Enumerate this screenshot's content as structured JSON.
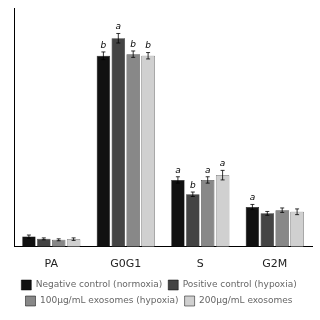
{
  "chart_data": {
    "type": "bar",
    "categories": [
      "PA",
      "G0G1",
      "S",
      "G2M"
    ],
    "series": [
      {
        "name": "Negative control (normoxia)",
        "color": "#111111",
        "values": [
          3.2,
          60.0,
          21.0,
          12.5
        ],
        "errors": [
          0.5,
          1.2,
          1.0,
          0.8
        ],
        "letters": [
          null,
          "b",
          "a",
          "a"
        ]
      },
      {
        "name": "Positive control (hypoxia)",
        "color": "#444444",
        "values": [
          2.5,
          65.5,
          16.5,
          10.5
        ],
        "errors": [
          0.3,
          1.5,
          0.7,
          0.6
        ],
        "letters": [
          null,
          "a",
          "b",
          null
        ]
      },
      {
        "name": "100µg/mL exosomes (hypoxia)",
        "color": "#888888",
        "values": [
          2.2,
          60.5,
          21.0,
          11.5
        ],
        "errors": [
          0.3,
          1.0,
          1.0,
          0.7
        ],
        "letters": [
          null,
          "b",
          "a",
          null
        ]
      },
      {
        "name": "200µg/mL exosomes",
        "color": "#d0d0d0",
        "values": [
          2.4,
          60.0,
          22.5,
          11.0
        ],
        "errors": [
          0.4,
          1.0,
          1.5,
          0.9
        ],
        "letters": [
          null,
          "b",
          "a",
          null
        ]
      }
    ],
    "ylim": [
      0,
      75
    ],
    "grid": false,
    "legend": "bottom",
    "tick_labels": "x"
  }
}
